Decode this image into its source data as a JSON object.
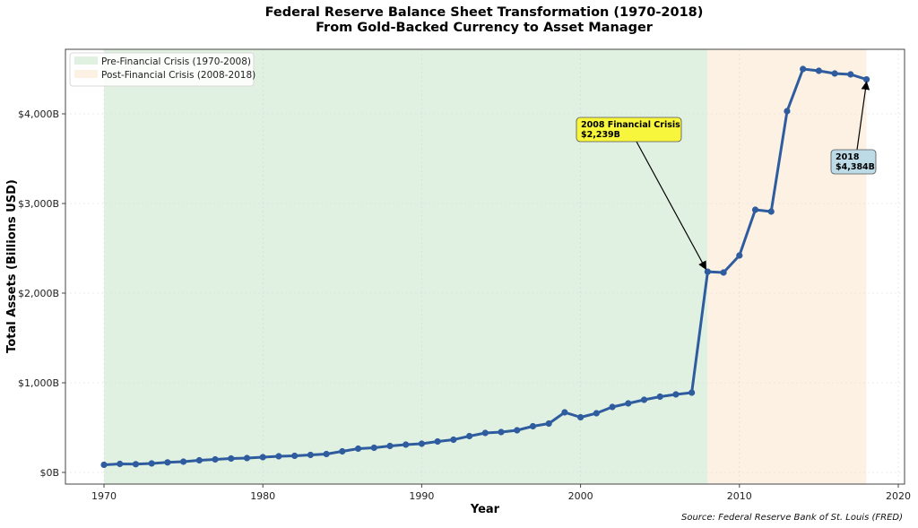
{
  "chart_data": {
    "type": "line",
    "title": "Federal Reserve Balance Sheet Transformation (1970-2018)",
    "subtitle": "From Gold-Backed Currency to Asset Manager",
    "xlabel": "Year",
    "ylabel": "Total Assets (Billions USD)",
    "xlim": [
      1967.5,
      2020.5
    ],
    "ylim": [
      -130,
      4700
    ],
    "x_ticks": [
      1970,
      1980,
      1990,
      2000,
      2010,
      2020
    ],
    "y_ticks": [
      0,
      1000,
      2000,
      3000,
      4000
    ],
    "y_tick_labels": [
      "$0B",
      "$1,000B",
      "$2,000B",
      "$3,000B",
      "$4,000B"
    ],
    "grid": true,
    "legend_position": "upper left",
    "series": [
      {
        "name": "Total Assets",
        "color": "#2e5c9e",
        "x": [
          1970,
          1971,
          1972,
          1973,
          1974,
          1975,
          1976,
          1977,
          1978,
          1979,
          1980,
          1981,
          1982,
          1983,
          1984,
          1985,
          1986,
          1987,
          1988,
          1989,
          1990,
          1991,
          1992,
          1993,
          1994,
          1995,
          1996,
          1997,
          1998,
          1999,
          2000,
          2001,
          2002,
          2003,
          2004,
          2005,
          2006,
          2007,
          2008,
          2009,
          2010,
          2011,
          2012,
          2013,
          2014,
          2015,
          2016,
          2017,
          2018
        ],
        "values": [
          85,
          95,
          92,
          100,
          112,
          120,
          135,
          145,
          155,
          160,
          170,
          180,
          185,
          195,
          205,
          235,
          265,
          275,
          295,
          310,
          320,
          345,
          365,
          405,
          440,
          450,
          470,
          515,
          545,
          670,
          615,
          660,
          730,
          770,
          810,
          845,
          870,
          890,
          2239,
          2230,
          2420,
          2930,
          2910,
          4030,
          4500,
          4480,
          4450,
          4440,
          4384
        ]
      }
    ],
    "shaded_regions": [
      {
        "label": "Pre-Financial Crisis (1970-2008)",
        "x_start": 1970,
        "x_end": 2008,
        "color": "#e1f1e1"
      },
      {
        "label": "Post-Financial Crisis (2008-2018)",
        "x_start": 2008,
        "x_end": 2018,
        "color": "#fdf1e3"
      }
    ],
    "annotations": [
      {
        "line1": "2008 Financial Crisis",
        "line2": "$2,239B",
        "x": 2008,
        "y": 2239,
        "box_color": "#f7f53c"
      },
      {
        "line1": "2018",
        "line2": "$4,384B",
        "x": 2018,
        "y": 4384,
        "box_color": "#bcdbe6"
      }
    ],
    "source": "Source: Federal Reserve Bank of St. Louis (FRED)"
  }
}
